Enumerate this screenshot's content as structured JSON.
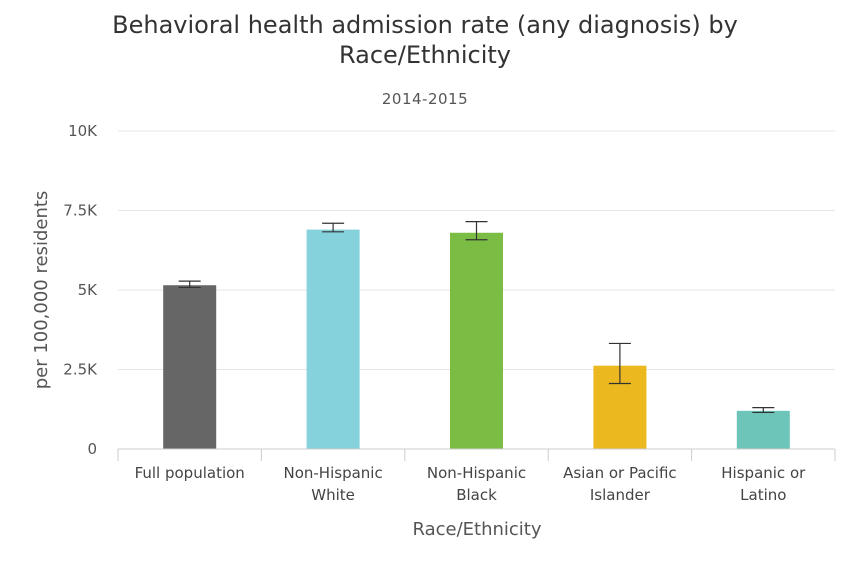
{
  "chart_data": {
    "type": "bar",
    "title_lines": [
      "Behavioral health admission rate (any diagnosis) by",
      "Race/Ethnicity"
    ],
    "subtitle": "2014-2015",
    "xlabel": "Race/Ethnicity",
    "ylabel": "per 100,000 residents",
    "ylim": [
      0,
      10000
    ],
    "y_ticks": [
      0,
      2500,
      5000,
      7500,
      10000
    ],
    "y_tick_labels": [
      "0",
      "2.5K",
      "5K",
      "7.5K",
      "10K"
    ],
    "grid": true,
    "categories": [
      [
        "Full population"
      ],
      [
        "Non-Hispanic",
        "White"
      ],
      [
        "Non-Hispanic",
        "Black"
      ],
      [
        "Asian or Pacific",
        "Islander"
      ],
      [
        "Hispanic or",
        "Latino"
      ]
    ],
    "values": [
      5150,
      6900,
      6800,
      2620,
      1200
    ],
    "error_low": [
      5080,
      6830,
      6580,
      2060,
      1150
    ],
    "error_high": [
      5280,
      7100,
      7150,
      3320,
      1300
    ],
    "colors": [
      "#666666",
      "#85d2dd",
      "#7bbd44",
      "#ecb81f",
      "#6cc5b8"
    ]
  }
}
